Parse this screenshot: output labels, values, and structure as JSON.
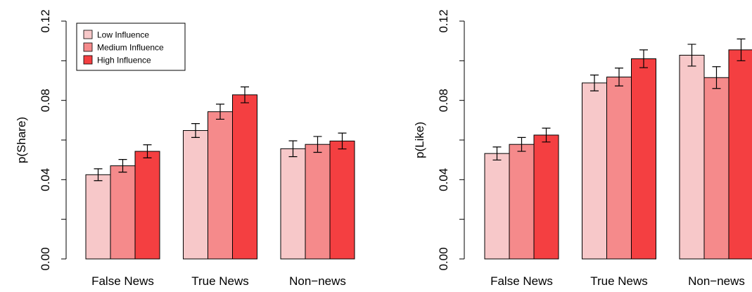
{
  "legend": {
    "entries": [
      "Low Influence",
      "Medium Influence",
      "High Influence"
    ],
    "placement": "top-left of left panel"
  },
  "colors": {
    "Low Influence": "#f7c8c9",
    "Medium Influence": "#f58a8b",
    "High Influence": "#f43f41"
  },
  "chart_data": [
    {
      "type": "bar",
      "title": "",
      "xlabel": "",
      "ylabel": "p(Share)",
      "ylim": [
        0,
        0.12
      ],
      "yticks": [
        0.0,
        0.04,
        0.08,
        0.12
      ],
      "ytick_labels": [
        "0.00",
        "0.04",
        "0.08",
        "0.12"
      ],
      "categories": [
        "False News",
        "True News",
        "Non−news"
      ],
      "grid": false,
      "legend": true,
      "series": [
        {
          "name": "Low Influence",
          "values": [
            0.0425,
            0.0648,
            0.0556
          ],
          "error": [
            0.003,
            0.0035,
            0.004
          ]
        },
        {
          "name": "Medium Influence",
          "values": [
            0.047,
            0.0743,
            0.0578
          ],
          "error": [
            0.0032,
            0.0038,
            0.004
          ]
        },
        {
          "name": "High Influence",
          "values": [
            0.0543,
            0.0828,
            0.0595
          ],
          "error": [
            0.0033,
            0.004,
            0.004
          ]
        }
      ]
    },
    {
      "type": "bar",
      "title": "",
      "xlabel": "",
      "ylabel": "p(Like)",
      "ylim": [
        0,
        0.12
      ],
      "yticks": [
        0.0,
        0.04,
        0.08,
        0.12
      ],
      "ytick_labels": [
        "0.00",
        "0.04",
        "0.08",
        "0.12"
      ],
      "categories": [
        "False News",
        "True News",
        "Non−news"
      ],
      "grid": false,
      "legend": false,
      "series": [
        {
          "name": "Low Influence",
          "values": [
            0.0532,
            0.0888,
            0.1028
          ],
          "error": [
            0.0033,
            0.004,
            0.0055
          ]
        },
        {
          "name": "Medium Influence",
          "values": [
            0.0578,
            0.0918,
            0.0915
          ],
          "error": [
            0.0035,
            0.0045,
            0.0055
          ]
        },
        {
          "name": "High Influence",
          "values": [
            0.0625,
            0.101,
            0.1055
          ],
          "error": [
            0.0035,
            0.0045,
            0.0055
          ]
        }
      ]
    }
  ]
}
